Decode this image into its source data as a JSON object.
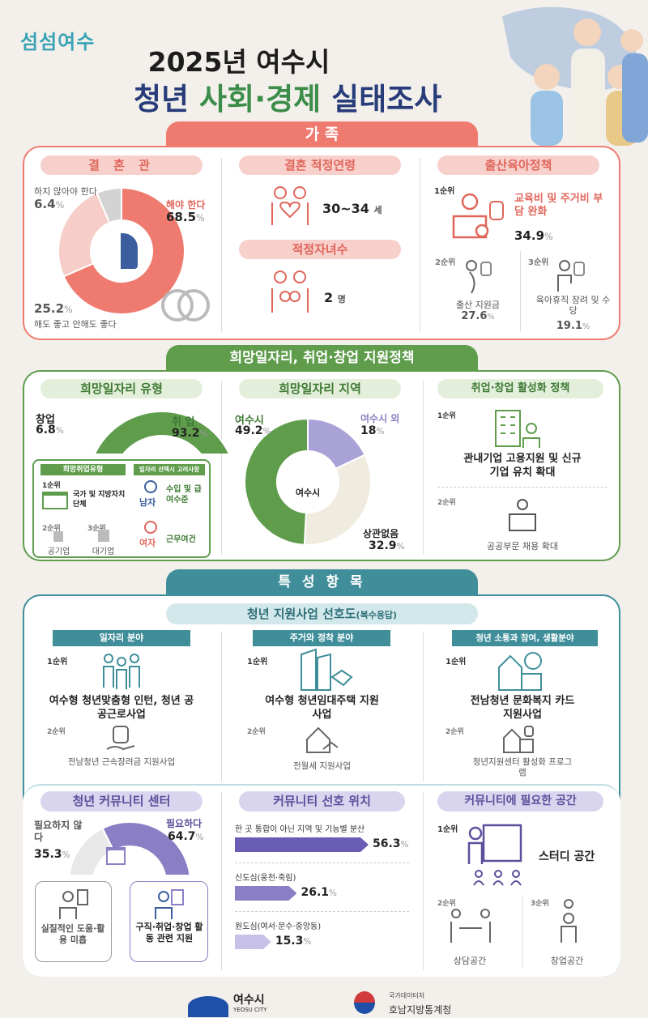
{
  "header": {
    "logo": "섬섬여수",
    "title_line1": "2025년 여수시",
    "title_parts": [
      "청년",
      "사회·경제",
      "실태조사"
    ]
  },
  "colors": {
    "family": "#ef7b70",
    "family_light": "#f7d0cc",
    "jobs": "#5f9d4d",
    "jobs_light": "#e4efdb",
    "special": "#3f8e9a",
    "special_light": "#d3e8ea",
    "community": "#8a7fc4",
    "community_light": "#d9d5ef"
  },
  "family": {
    "tab": "가 족",
    "marriage": {
      "title": "결 혼 관",
      "segments": [
        {
          "label": "해야 한다",
          "value": 68.5
        },
        {
          "label": "해도 좋고 안해도 좋다",
          "value": 25.2
        },
        {
          "label": "하지 않아야 한다",
          "value": 6.4
        }
      ]
    },
    "age": {
      "title": "결혼 적정연령",
      "value": "30~34",
      "unit": "세"
    },
    "children": {
      "title": "적정자녀수",
      "value": "2",
      "unit": "명"
    },
    "policy": {
      "title": "출산육아정책",
      "items": [
        {
          "rank": "1순위",
          "label": "교육비 및 주거비 부담 완화",
          "value": "34.9"
        },
        {
          "rank": "2순위",
          "label": "출산 지원금",
          "value": "27.6"
        },
        {
          "rank": "3순위",
          "label": "육아휴직 장려 및 수당",
          "value": "19.1"
        }
      ]
    }
  },
  "jobs": {
    "tab": "희망일자리, 취업·창업 지원정책",
    "type": {
      "title": "희망일자리 유형",
      "segments": [
        {
          "label": "취 업",
          "value": 93.2
        },
        {
          "label": "창업",
          "value": 6.8
        }
      ],
      "detail_title": "희망취업유형",
      "rank1": "1순위",
      "rank1_label": "국가 및 지방자치 단체",
      "rank2": "2순위",
      "rank2_label": "공기업",
      "rank3": "3순위",
      "rank3_label": "대기업",
      "consider_title": "일자리 선택시 고려사항",
      "male": "남자",
      "male_label": "수입 및 급여수준",
      "female": "여자",
      "female_label": "근무여건"
    },
    "region": {
      "title": "희망일자리 지역",
      "center": "여수시",
      "segments": [
        {
          "label": "여수시",
          "value": 49.2
        },
        {
          "label": "여수시 외",
          "value": 18.0
        },
        {
          "label": "상관없음",
          "value": 32.9
        }
      ]
    },
    "policy": {
      "title": "취업·창업 활성화 정책",
      "items": [
        {
          "rank": "1순위",
          "label": "관내기업 고용지원 및 신규기업 유치 확대"
        },
        {
          "rank": "2순위",
          "label": "공공부문 채용 확대"
        }
      ]
    }
  },
  "special": {
    "tab": "특 성 항 목",
    "pref_title": "청년 지원사업 선호도",
    "pref_note": "(복수응답)",
    "columns": [
      {
        "title": "일자리 분야",
        "rank1": "1순위",
        "first": "여수형 청년맞춤형 인턴, 청년 공공근로사업",
        "rank2": "2순위",
        "second": "전남청년 근속장려금 지원사업"
      },
      {
        "title": "주거와 정착 분야",
        "rank1": "1순위",
        "first": "여수형 청년임대주택 지원사업",
        "rank2": "2순위",
        "second": "전월세 지원사업"
      },
      {
        "title": "청년 소통과 참여, 생활분야",
        "rank1": "1순위",
        "first": "전남청년 문화복지 카드 지원사업",
        "rank2": "2순위",
        "second": "청년지원센터 활성화 프로그램"
      }
    ],
    "center": {
      "title": "청년 커뮤니티 센터",
      "segments": [
        {
          "label": "필요하다",
          "value": 64.7
        },
        {
          "label": "필요하지 않다",
          "value": 35.3
        }
      ],
      "reason_no": "실질적인 도움·활용 미흡",
      "reason_yes": "구직·취업·창업 활동 관련 지원"
    },
    "location": {
      "title": "커뮤니티 선호 위치",
      "bars": [
        {
          "label": "한 곳 통합이 아닌 지역 및 기능별 분산",
          "value": 56.3
        },
        {
          "label": "신도심(웅천·죽림)",
          "value": 26.1
        },
        {
          "label": "원도심(여서·문수·중앙동)",
          "value": 15.3
        }
      ]
    },
    "space": {
      "title": "커뮤니티에 필요한 공간",
      "items": [
        {
          "rank": "1순위",
          "label": "스터디 공간"
        },
        {
          "rank": "2순위",
          "label": "상담공간"
        },
        {
          "rank": "3순위",
          "label": "창업공간"
        }
      ]
    }
  },
  "footer": {
    "city": "여수시",
    "city_en": "YEOSU CITY",
    "agency_sub": "국가데이터처",
    "agency": "호남지방통계청"
  }
}
